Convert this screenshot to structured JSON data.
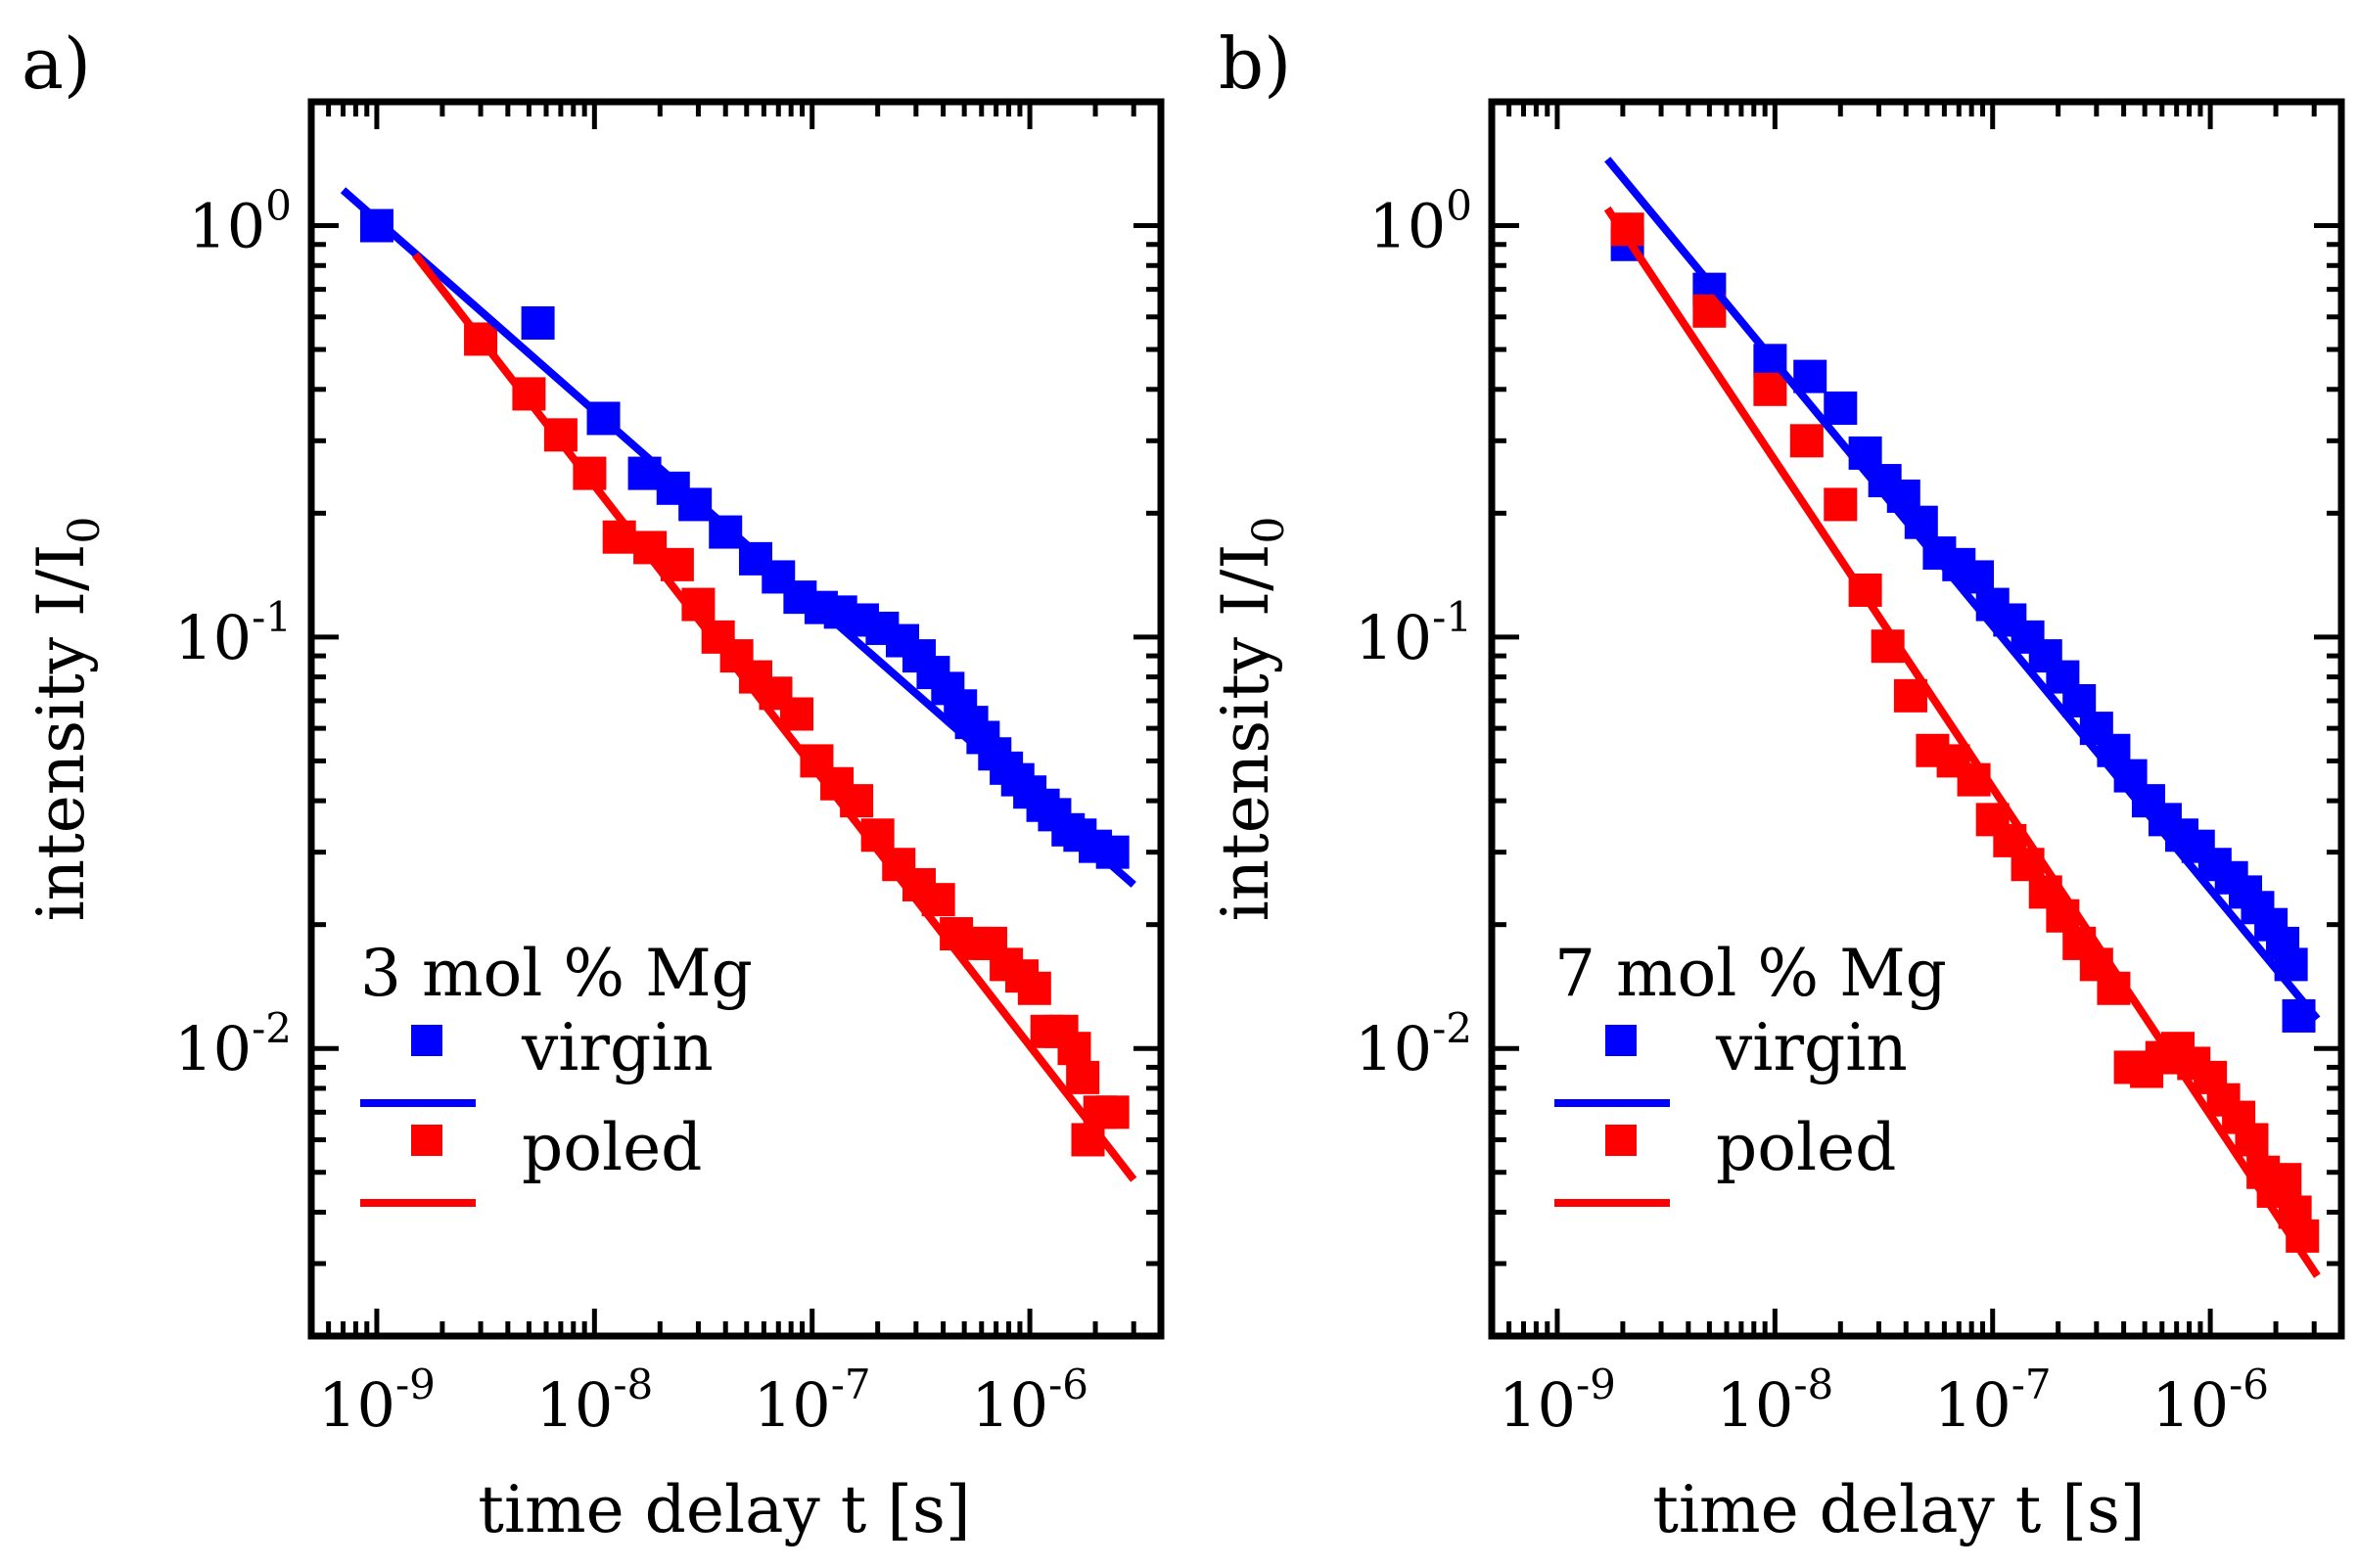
{
  "chart_data": [
    {
      "panel_label": "a)",
      "type": "scatter",
      "xscale": "log",
      "yscale": "log",
      "xlim": [
        5e-10,
        4e-06
      ],
      "ylim": [
        0.002,
        2
      ],
      "xlabel": "time delay t [s]",
      "ylabel_main": "intensity I/I",
      "ylabel_sub": "0",
      "xticks": [
        {
          "value": 1e-09,
          "base": "10",
          "exp": "-9"
        },
        {
          "value": 1e-08,
          "base": "10",
          "exp": "-8"
        },
        {
          "value": 1e-07,
          "base": "10",
          "exp": "-7"
        },
        {
          "value": 1e-06,
          "base": "10",
          "exp": "-6"
        }
      ],
      "yticks": [
        {
          "value": 1,
          "base": "10",
          "exp": "0"
        },
        {
          "value": 0.1,
          "base": "10",
          "exp": "-1"
        },
        {
          "value": 0.01,
          "base": "10",
          "exp": "-2"
        }
      ],
      "legend_title": "3 mol % Mg",
      "legend_position": "bottom-left",
      "series": [
        {
          "name": "virgin",
          "color": "#0000ff",
          "points": [
            [
              1e-09,
              1.0
            ],
            [
              5.5e-09,
              0.58
            ],
            [
              1.1e-08,
              0.34
            ],
            [
              1.7e-08,
              0.25
            ],
            [
              2.3e-08,
              0.23
            ],
            [
              2.9e-08,
              0.21
            ],
            [
              4e-08,
              0.18
            ],
            [
              5.5e-08,
              0.155
            ],
            [
              7e-08,
              0.14
            ],
            [
              8.8e-08,
              0.125
            ],
            [
              1.1e-07,
              0.118
            ],
            [
              1.35e-07,
              0.115
            ],
            [
              1.7e-07,
              0.11
            ],
            [
              2.1e-07,
              0.105
            ],
            [
              2.6e-07,
              0.098
            ],
            [
              3.1e-07,
              0.09
            ],
            [
              3.6e-07,
              0.082
            ],
            [
              4.2e-07,
              0.075
            ],
            [
              4.8e-07,
              0.068
            ],
            [
              5.4e-07,
              0.062
            ],
            [
              6.1e-07,
              0.057
            ],
            [
              6.9e-07,
              0.052
            ],
            [
              7.8e-07,
              0.048
            ],
            [
              8.8e-07,
              0.045
            ],
            [
              1e-06,
              0.042
            ],
            [
              1.15e-06,
              0.039
            ],
            [
              1.3e-06,
              0.037
            ],
            [
              1.5e-06,
              0.034
            ],
            [
              1.7e-06,
              0.033
            ],
            [
              2e-06,
              0.031
            ],
            [
              2.4e-06,
              0.03
            ]
          ],
          "fit": {
            "x0": 7e-10,
            "y0": 1.22,
            "x1": 3e-06,
            "y1": 0.025
          }
        },
        {
          "name": "poled",
          "color": "#ff0000",
          "points": [
            [
              3e-09,
              0.53
            ],
            [
              5e-09,
              0.39
            ],
            [
              7e-09,
              0.31
            ],
            [
              9.5e-09,
              0.25
            ],
            [
              1.3e-08,
              0.175
            ],
            [
              1.8e-08,
              0.165
            ],
            [
              2.4e-08,
              0.15
            ],
            [
              3e-08,
              0.12
            ],
            [
              3.7e-08,
              0.1
            ],
            [
              4.5e-08,
              0.09
            ],
            [
              5.5e-08,
              0.08
            ],
            [
              6.8e-08,
              0.073
            ],
            [
              8.5e-08,
              0.065
            ],
            [
              1.05e-07,
              0.05
            ],
            [
              1.3e-07,
              0.044
            ],
            [
              1.6e-07,
              0.04
            ],
            [
              2e-07,
              0.033
            ],
            [
              2.5e-07,
              0.028
            ],
            [
              3.1e-07,
              0.025
            ],
            [
              3.8e-07,
              0.023
            ],
            [
              4.6e-07,
              0.019
            ],
            [
              5.6e-07,
              0.018
            ],
            [
              6.6e-07,
              0.018
            ],
            [
              7.8e-07,
              0.016
            ],
            [
              9.2e-07,
              0.015
            ],
            [
              1.05e-06,
              0.014
            ],
            [
              1.2e-06,
              0.011
            ],
            [
              1.4e-06,
              0.011
            ],
            [
              1.6e-06,
              0.01
            ],
            [
              1.75e-06,
              0.0085
            ],
            [
              1.85e-06,
              0.006
            ],
            [
              2.1e-06,
              0.007
            ],
            [
              2.4e-06,
              0.007
            ]
          ],
          "fit": {
            "x0": 1.5e-09,
            "y0": 0.85,
            "x1": 3e-06,
            "y1": 0.0048
          }
        }
      ]
    },
    {
      "panel_label": "b)",
      "type": "scatter",
      "xscale": "log",
      "yscale": "log",
      "xlim": [
        5e-10,
        4e-06
      ],
      "ylim": [
        0.002,
        2
      ],
      "xlabel": "time delay t [s]",
      "ylabel_main": "intensity I/I",
      "ylabel_sub": "0",
      "xticks": [
        {
          "value": 1e-09,
          "base": "10",
          "exp": "-9"
        },
        {
          "value": 1e-08,
          "base": "10",
          "exp": "-8"
        },
        {
          "value": 1e-07,
          "base": "10",
          "exp": "-7"
        },
        {
          "value": 1e-06,
          "base": "10",
          "exp": "-6"
        }
      ],
      "yticks": [
        {
          "value": 1,
          "base": "10",
          "exp": "0"
        },
        {
          "value": 0.1,
          "base": "10",
          "exp": "-1"
        },
        {
          "value": 0.01,
          "base": "10",
          "exp": "-2"
        }
      ],
      "legend_title": "7 mol % Mg",
      "legend_position": "bottom-left",
      "series": [
        {
          "name": "virgin",
          "color": "#0000ff",
          "points": [
            [
              2.1e-09,
              0.9
            ],
            [
              5e-09,
              0.7
            ],
            [
              9.5e-09,
              0.47
            ],
            [
              1.45e-08,
              0.43
            ],
            [
              2e-08,
              0.36
            ],
            [
              2.6e-08,
              0.28
            ],
            [
              3.2e-08,
              0.24
            ],
            [
              3.9e-08,
              0.22
            ],
            [
              4.7e-08,
              0.19
            ],
            [
              5.7e-08,
              0.16
            ],
            [
              7e-08,
              0.15
            ],
            [
              8.5e-08,
              0.14
            ],
            [
              1e-07,
              0.12
            ],
            [
              1.2e-07,
              0.11
            ],
            [
              1.45e-07,
              0.1
            ],
            [
              1.75e-07,
              0.09
            ],
            [
              2.1e-07,
              0.08
            ],
            [
              2.5e-07,
              0.07
            ],
            [
              3e-07,
              0.06
            ],
            [
              3.6e-07,
              0.053
            ],
            [
              4.3e-07,
              0.046
            ],
            [
              5.2e-07,
              0.04
            ],
            [
              6.2e-07,
              0.036
            ],
            [
              7.4e-07,
              0.033
            ],
            [
              8.8e-07,
              0.031
            ],
            [
              1.05e-06,
              0.028
            ],
            [
              1.25e-06,
              0.026
            ],
            [
              1.45e-06,
              0.024
            ],
            [
              1.65e-06,
              0.022
            ],
            [
              1.9e-06,
              0.02
            ],
            [
              2.15e-06,
              0.018
            ],
            [
              2.35e-06,
              0.016
            ],
            [
              2.55e-06,
              0.012
            ]
          ],
          "fit": {
            "x0": 1.7e-09,
            "y0": 1.45,
            "x1": 3.1e-06,
            "y1": 0.0118
          }
        },
        {
          "name": "poled",
          "color": "#ff0000",
          "points": [
            [
              2.1e-09,
              0.98
            ],
            [
              5e-09,
              0.62
            ],
            [
              9.5e-09,
              0.4
            ],
            [
              1.4e-08,
              0.3
            ],
            [
              2e-08,
              0.21
            ],
            [
              2.6e-08,
              0.13
            ],
            [
              3.3e-08,
              0.095
            ],
            [
              4.2e-08,
              0.072
            ],
            [
              5.3e-08,
              0.053
            ],
            [
              6.6e-08,
              0.05
            ],
            [
              8.2e-08,
              0.045
            ],
            [
              1e-07,
              0.036
            ],
            [
              1.2e-07,
              0.032
            ],
            [
              1.45e-07,
              0.028
            ],
            [
              1.75e-07,
              0.024
            ],
            [
              2.1e-07,
              0.021
            ],
            [
              2.5e-07,
              0.018
            ],
            [
              3e-07,
              0.016
            ],
            [
              3.6e-07,
              0.014
            ],
            [
              4.3e-07,
              0.009
            ],
            [
              5.1e-07,
              0.0088
            ],
            [
              6e-07,
              0.0095
            ],
            [
              7.1e-07,
              0.01
            ],
            [
              8.4e-07,
              0.0092
            ],
            [
              1e-06,
              0.0085
            ],
            [
              1.15e-06,
              0.0075
            ],
            [
              1.35e-06,
              0.0068
            ],
            [
              1.55e-06,
              0.006
            ],
            [
              1.75e-06,
              0.005
            ],
            [
              1.95e-06,
              0.0045
            ],
            [
              2.2e-06,
              0.0048
            ],
            [
              2.45e-06,
              0.004
            ],
            [
              2.65e-06,
              0.0035
            ]
          ],
          "fit": {
            "x0": 1.7e-09,
            "y0": 1.1,
            "x1": 3.1e-06,
            "y1": 0.0028
          }
        }
      ]
    }
  ]
}
